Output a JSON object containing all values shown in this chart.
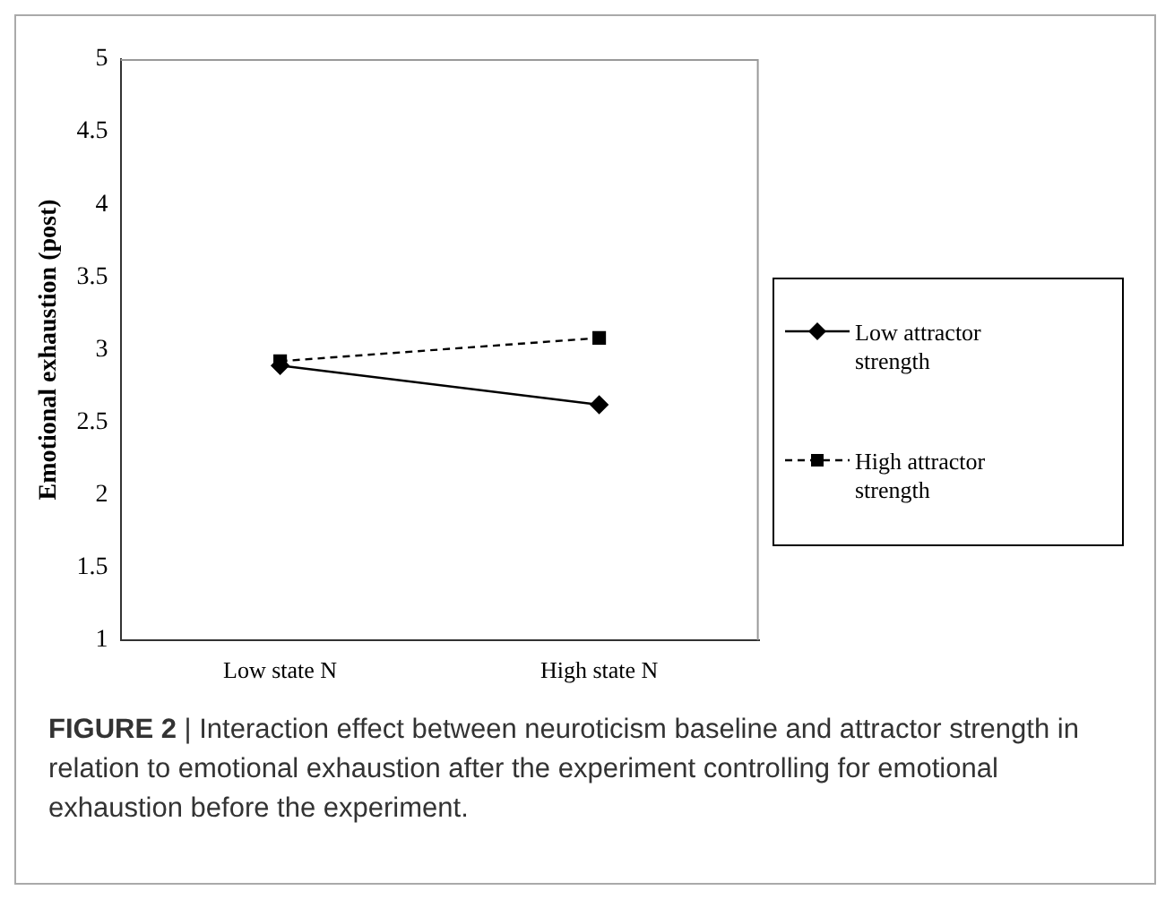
{
  "chart_data": {
    "type": "line",
    "ylabel": "Emotional exhaustion (post)",
    "categories": [
      "Low state N",
      "High state N"
    ],
    "series": [
      {
        "name": "Low attractor strength",
        "color": "#000000",
        "values": [
          2.89,
          2.62
        ],
        "marker": "diamond",
        "line_style": "solid"
      },
      {
        "name": "High attractor strength",
        "color": "#000000",
        "values": [
          2.92,
          3.08
        ],
        "marker": "square",
        "line_style": "dashed"
      }
    ],
    "ylim": [
      1,
      5
    ],
    "yticks": [
      1,
      1.5,
      2,
      2.5,
      3,
      3.5,
      4,
      4.5,
      5
    ],
    "grid": false,
    "legend": "right",
    "annotations": [
      "FIGURE 2 | Interaction effect between neuroticism baseline and attractor strength in relation to emotional exhaustion after the experiment controlling for emotional exhaustion before the experiment."
    ]
  }
}
